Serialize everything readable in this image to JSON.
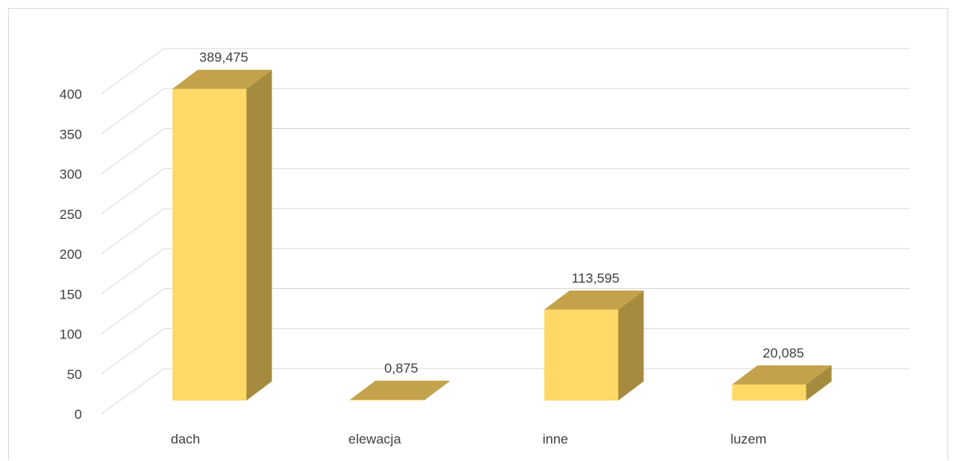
{
  "chart_data": {
    "type": "bar",
    "style": "3d-column",
    "categories": [
      "dach",
      "elewacja",
      "inne",
      "luzem"
    ],
    "values": [
      389.475,
      0.875,
      113.595,
      20.085
    ],
    "value_labels": [
      "389,475",
      "0,875",
      "113,595",
      "20,085"
    ],
    "ylim": [
      0,
      400
    ],
    "y_ticks": [
      0,
      50,
      100,
      150,
      200,
      250,
      300,
      350,
      400
    ],
    "y_tick_labels": [
      "0",
      "50",
      "100",
      "150",
      "200",
      "250",
      "300",
      "350",
      "400"
    ],
    "grid": true,
    "legend": "none",
    "colors": {
      "front": "#FFD966",
      "side": "#A68B3E",
      "top": "#C4A24C",
      "grid": "#d9d9d9",
      "text": "#404040"
    }
  }
}
